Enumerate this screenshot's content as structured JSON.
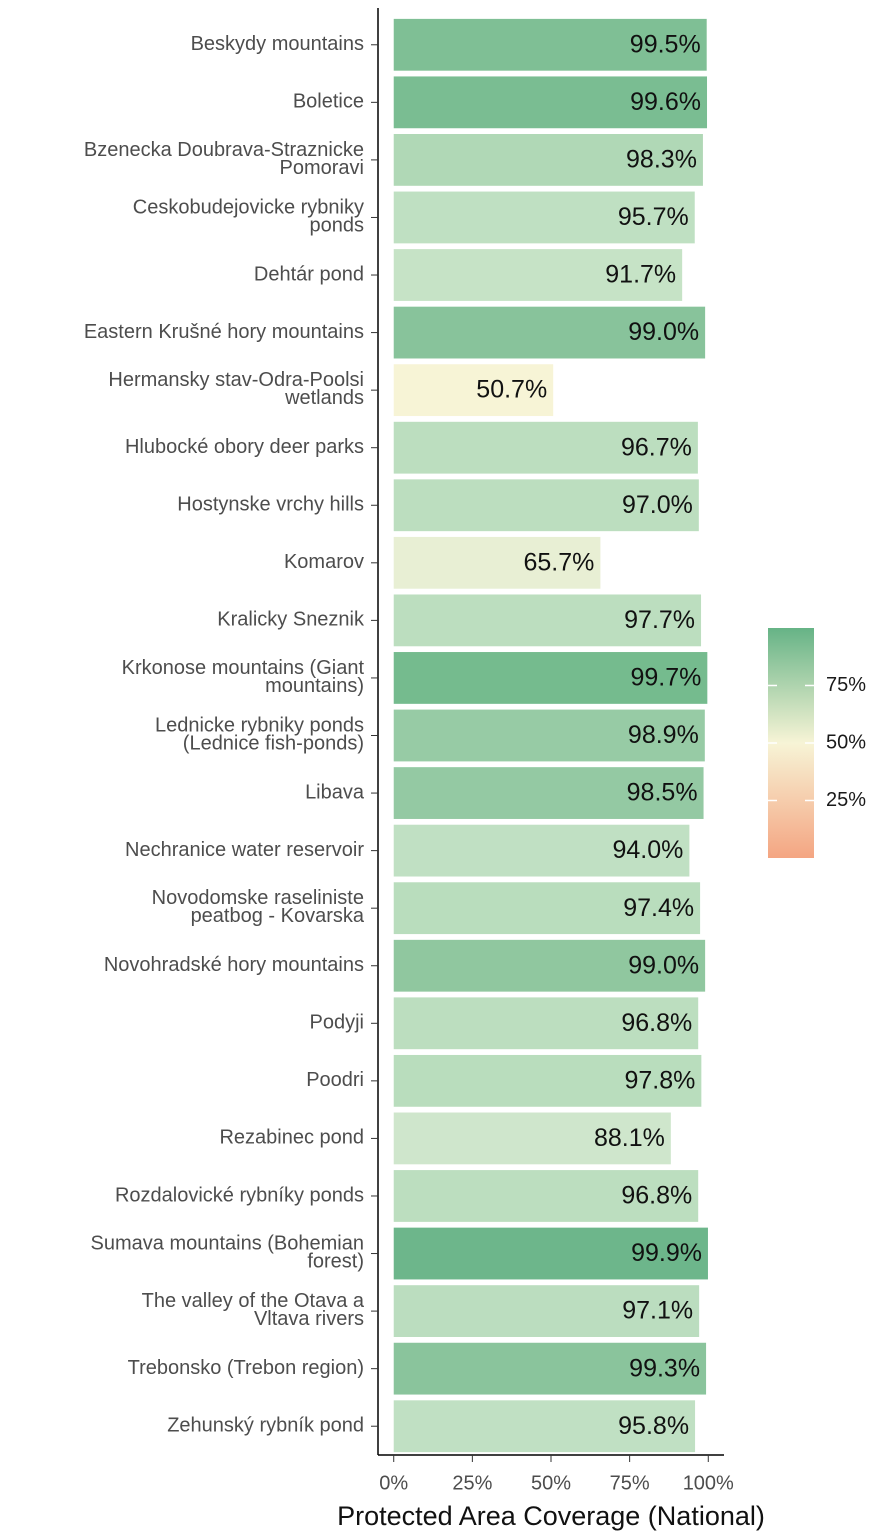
{
  "chart_data": {
    "type": "bar",
    "orientation": "horizontal",
    "x_label": "Protected Area Coverage (National)",
    "categories": [
      "Beskydy mountains",
      "Boletice",
      "Bzenecka Doubrava-Straznicke\nPomoravi",
      "Ceskobudejovicke rybniky\nponds",
      "Dehtár pond",
      "Eastern Krušné hory mountains",
      "Hermansky stav-Odra-Poolsi\nwetlands",
      "Hlubocké obory deer parks",
      "Hostynske vrchy hills",
      "Komarov",
      "Kralicky Sneznik",
      "Krkonose mountains (Giant\nmountains)",
      "Lednicke rybniky ponds\n(Lednice fish-ponds)",
      "Libava",
      "Nechranice water reservoir",
      "Novodomske raseliniste\npeatbog - Kovarska",
      "Novohradské hory mountains",
      "Podyji",
      "Poodri",
      "Rezabinec pond",
      "Rozdalovické rybníky ponds",
      "Sumava mountains (Bohemian\nforest)",
      "The valley of the Otava a\nVltava rivers",
      "Trebonsko (Trebon region)",
      "Zehunský rybník pond"
    ],
    "values": [
      99.5,
      99.6,
      98.3,
      95.7,
      91.7,
      99.0,
      50.7,
      96.7,
      97.0,
      65.7,
      97.7,
      99.7,
      98.9,
      98.5,
      94.0,
      97.4,
      99.0,
      96.8,
      97.8,
      88.1,
      96.8,
      99.9,
      97.1,
      99.3,
      95.8
    ],
    "value_labels": [
      "99.5%",
      "99.6%",
      "98.3%",
      "95.7%",
      "91.7%",
      "99.0%",
      "50.7%",
      "96.7%",
      "97.0%",
      "65.7%",
      "97.7%",
      "99.7%",
      "98.9%",
      "98.5%",
      "94.0%",
      "97.4%",
      "99.0%",
      "96.8%",
      "97.8%",
      "88.1%",
      "96.8%",
      "99.9%",
      "97.1%",
      "99.3%",
      "95.8%"
    ],
    "colors": [
      "#7fbf95",
      "#7abd92",
      "#b0d8b6",
      "#bfe0c2",
      "#c6e3c6",
      "#88c39b",
      "#f7f4d6",
      "#bcdebf",
      "#bcdebf",
      "#e8efd4",
      "#bcdebf",
      "#75bb8e",
      "#97cba5",
      "#94c9a3",
      "#c0e0c3",
      "#b9ddbd",
      "#90c79f",
      "#bcdebf",
      "#b9ddbd",
      "#cfe6cc",
      "#bcdebf",
      "#6db68b",
      "#bbddbf",
      "#8ac49c",
      "#c0e0c3"
    ],
    "xlim": [
      -5,
      105
    ],
    "xticks": [
      {
        "value": 0,
        "label": "0%"
      },
      {
        "value": 25,
        "label": "25%"
      },
      {
        "value": 50,
        "label": "50%"
      },
      {
        "value": 75,
        "label": "75%"
      },
      {
        "value": 100,
        "label": "100%"
      }
    ],
    "legend": {
      "position": "right",
      "lim": [
        0,
        100
      ],
      "colors": [
        "#f4a582",
        "#f7f4d6",
        "#66b386"
      ],
      "ticks": [
        {
          "value": 25,
          "label": "25%"
        },
        {
          "value": 50,
          "label": "50%"
        },
        {
          "value": 75,
          "label": "75%"
        }
      ]
    }
  }
}
